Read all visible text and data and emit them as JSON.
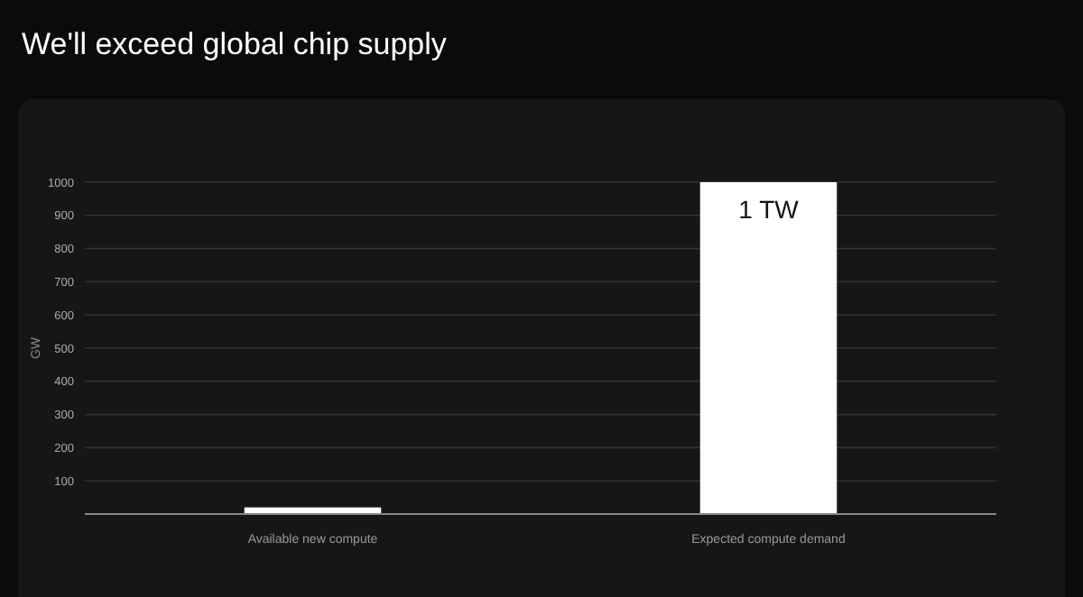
{
  "chart_data": {
    "type": "bar",
    "title": "We'll exceed global chip supply",
    "ylabel": "GW",
    "categories": [
      "Available new compute",
      "Expected compute demand"
    ],
    "values": [
      20,
      1000
    ],
    "color": "#ffffff",
    "annotations": [
      {
        "text": "1 TW",
        "x": "Expected compute demand",
        "y": 1000
      }
    ],
    "ylim": [
      0,
      1000
    ],
    "yticks": [
      100,
      200,
      300,
      400,
      500,
      600,
      700,
      800,
      900,
      1000
    ],
    "grid": "y"
  }
}
